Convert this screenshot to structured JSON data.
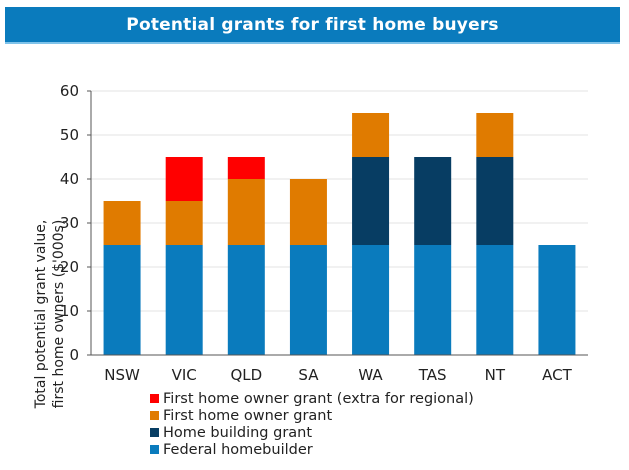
{
  "header": {
    "title": "Potential grants for first home buyers"
  },
  "colors": {
    "title_bar": "#0a7bbd",
    "federal_homebuilder": "#0a7bbd",
    "home_building_grant": "#073d63",
    "first_home_owner_grant": "#e07b00",
    "first_home_owner_grant_regional": "#ff0000",
    "gridline": "#e3e3e3",
    "axis": "#555555"
  },
  "chart_data": {
    "type": "bar",
    "stacked": true,
    "title": "Potential grants for first home buyers",
    "xlabel": "",
    "ylabel": "Total potential grant value, first home owners ($'000s)",
    "ylabel_lines": [
      "Total potential grant value,",
      "first home owners ($'000s)"
    ],
    "ylim": [
      0,
      60
    ],
    "yticks": [
      0,
      10,
      20,
      30,
      40,
      50,
      60
    ],
    "grid": true,
    "legend_position": "bottom",
    "categories": [
      "NSW",
      "VIC",
      "QLD",
      "SA",
      "WA",
      "TAS",
      "NT",
      "ACT"
    ],
    "series": [
      {
        "name": "Federal homebuilder",
        "color": "#0a7bbd",
        "values": [
          25,
          25,
          25,
          25,
          25,
          25,
          25,
          25
        ]
      },
      {
        "name": "Home building grant",
        "color": "#073d63",
        "values": [
          0,
          0,
          0,
          0,
          20,
          20,
          20,
          0
        ]
      },
      {
        "name": "First home owner grant",
        "color": "#e07b00",
        "values": [
          10,
          10,
          15,
          15,
          10,
          0,
          10,
          0
        ]
      },
      {
        "name": "First home owner grant (extra for regional)",
        "color": "#ff0000",
        "values": [
          0,
          10,
          5,
          0,
          0,
          0,
          0,
          0
        ]
      }
    ],
    "legend": [
      "First home owner grant (extra for regional)",
      "First home owner grant",
      "Home building grant",
      "Federal homebuilder"
    ]
  }
}
